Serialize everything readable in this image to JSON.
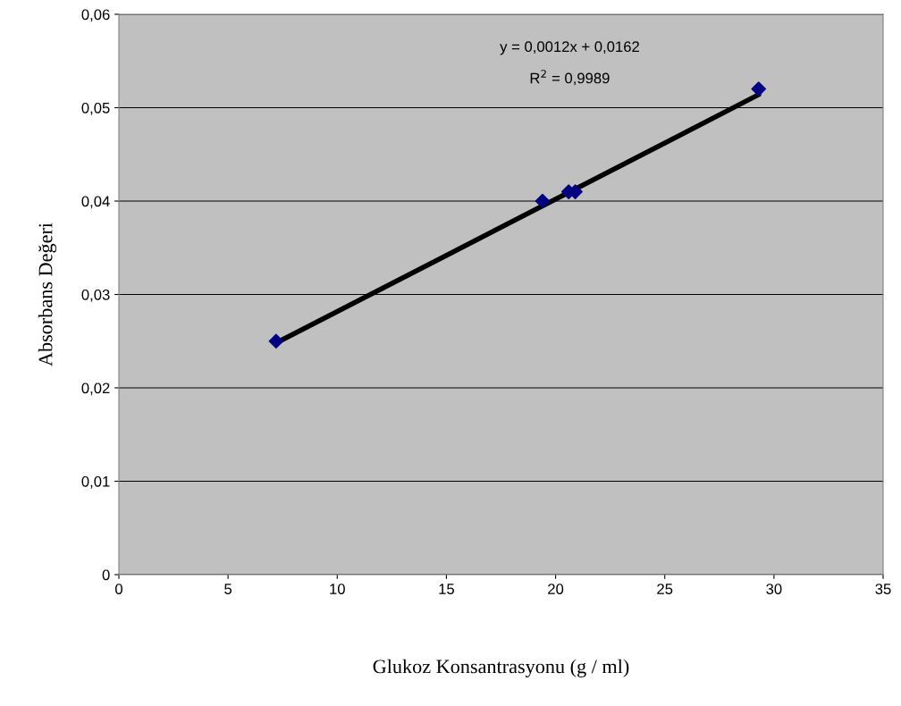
{
  "chart_data": {
    "type": "scatter",
    "xlabel": "Glukoz Konsantrasyonu (g / ml)",
    "ylabel": "Absorbans Değeri",
    "series": [
      {
        "color": "#000080",
        "marker": "diamond",
        "x": [
          7.2,
          19.4,
          20.6,
          20.9,
          29.3
        ],
        "values": [
          0.025,
          0.04,
          0.041,
          0.041,
          0.052
        ]
      },
      {
        "type": "line",
        "color": "#000000",
        "marker": "none",
        "x": [
          7.2,
          29.3
        ],
        "values": [
          0.0248,
          0.0514
        ]
      }
    ],
    "annotations": [
      "y = 0,0012x + 0,0162",
      "R$^{2}$ = 0,9989"
    ],
    "xlim": [
      0,
      35
    ],
    "xticks": [
      0,
      5,
      10,
      15,
      20,
      25,
      30,
      35
    ],
    "ylim": [
      0,
      0.06
    ],
    "yticks": [
      {
        "value": 0,
        "label": "0"
      },
      {
        "value": 0.01,
        "label": "0,01"
      },
      {
        "value": 0.02,
        "label": "0,02"
      },
      {
        "value": 0.03,
        "label": "0,03"
      },
      {
        "value": 0.04,
        "label": "0,04"
      },
      {
        "value": 0.05,
        "label": "0,05"
      },
      {
        "value": 0.06,
        "label": "0,06"
      }
    ],
    "grid": "y",
    "legend": false
  }
}
